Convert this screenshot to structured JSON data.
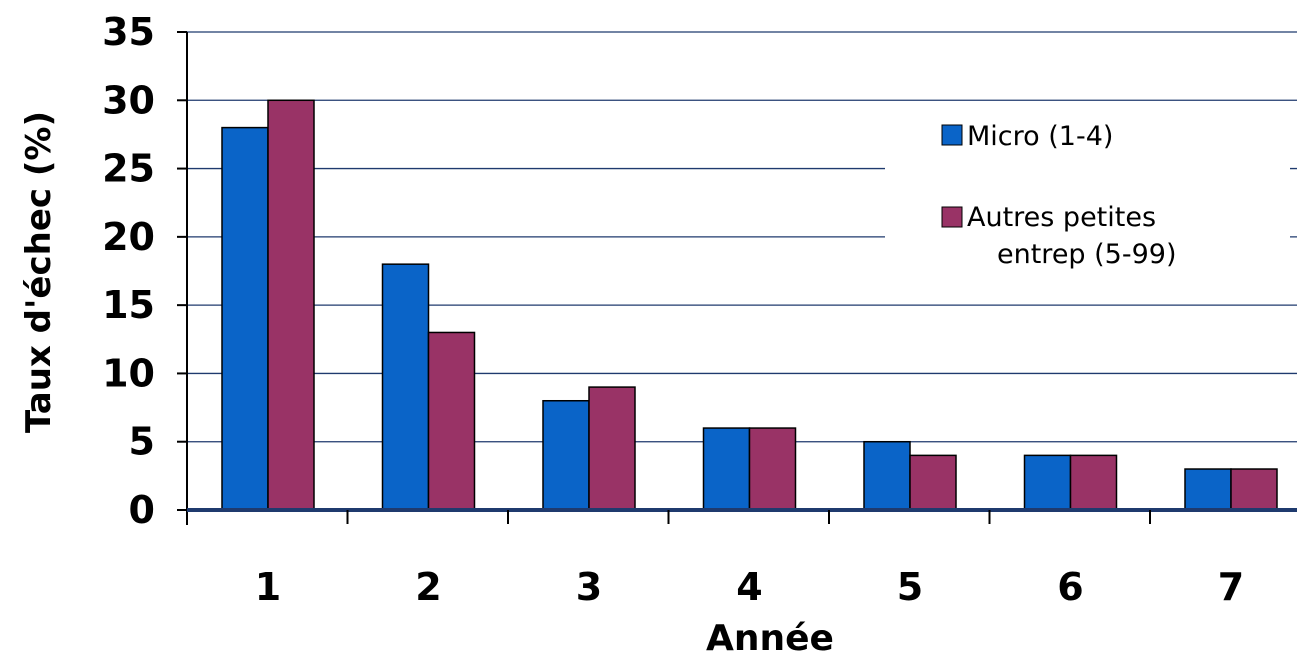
{
  "chart_data": {
    "type": "bar",
    "xlabel": "Année",
    "ylabel": "Taux d'échec (%)",
    "categories": [
      "1",
      "2",
      "3",
      "4",
      "5",
      "6",
      "7"
    ],
    "series": [
      {
        "name": "Micro (1-4)",
        "color": "#0a64c8",
        "values": [
          28,
          18,
          8,
          6,
          5,
          4,
          3
        ]
      },
      {
        "name": "Autres petites entrep (5-99)",
        "color": "#993366",
        "values": [
          30,
          13,
          9,
          6,
          4,
          4,
          3
        ]
      }
    ],
    "ylim": [
      0,
      35
    ],
    "yticks": [
      "0",
      "5",
      "10",
      "15",
      "20",
      "25",
      "30",
      "35"
    ],
    "grid": true,
    "legend_position": "right"
  }
}
